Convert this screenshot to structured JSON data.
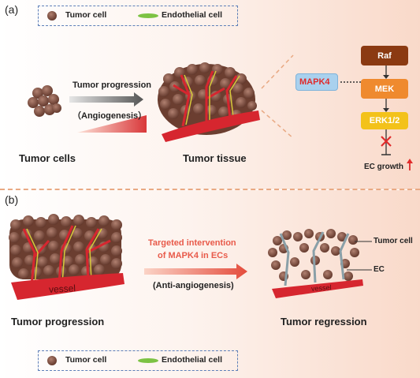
{
  "panel_a": {
    "label": "(a)",
    "legend": {
      "tumor_cell": "Tumor cell",
      "endothelial_cell": "Endothelial cell"
    },
    "arrow_top": "Tumor progression",
    "arrow_bottom": "（Angiogenesis）",
    "tumor_cells_label": "Tumor cells",
    "tumor_tissue_label": "Tumor tissue",
    "pathway": {
      "mapk4": "MAPK4",
      "raf": "Raf",
      "mek": "MEK",
      "erk": "ERK1/2",
      "ec_growth": "EC growth"
    }
  },
  "panel_b": {
    "label": "(b)",
    "intervention_line1": "Targeted intervention",
    "intervention_line2": "of MAPK4 in ECs",
    "intervention_sub": "(Anti-angiogenesis)",
    "vessel_left": "vessel",
    "vessel_right": "vessel",
    "tumor_progression": "Tumor progression",
    "tumor_regression": "Tumor regression",
    "tumor_cell_callout": "Tumor cell",
    "ec_callout": "EC",
    "legend": {
      "tumor_cell": "Tumor cell",
      "endothelial_cell": "Endothelial cell"
    }
  },
  "colors": {
    "tumor_cell": "#7a4a3a",
    "vessel": "#d6262f",
    "endothelial": "#7cc243",
    "raf": "#8b3a12",
    "mek": "#ef8a2e",
    "erk": "#f3c21a",
    "mapk4": "#a9d1ee",
    "red_text": "#e02b2b"
  }
}
